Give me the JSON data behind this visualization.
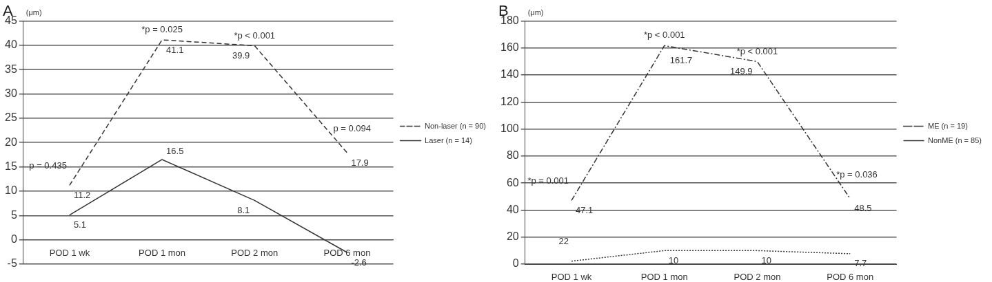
{
  "chart_data": [
    {
      "type": "line",
      "title": "A",
      "ylabel": "(μm)",
      "categories": [
        "POD 1 wk",
        "POD 1 mon",
        "POD 2 mon",
        "POD 6 mon"
      ],
      "series": [
        {
          "name": "Non-laser (n = 90)",
          "color": "#333333",
          "line_style": "dashed",
          "values": [
            11.2,
            41.1,
            39.9,
            17.9
          ]
        },
        {
          "name": "Laser (n = 14)",
          "color": "#333333",
          "line_style": "solid",
          "values": [
            5.1,
            16.5,
            8.1,
            -2.6
          ]
        }
      ],
      "ylim": [
        -5,
        45
      ],
      "yticks": [
        -5,
        0,
        5,
        10,
        15,
        20,
        25,
        30,
        35,
        40,
        45
      ],
      "grid": "y",
      "legend": "right",
      "marker": "none",
      "data_labels": true,
      "annotations": [
        {
          "text": "p = 0.435",
          "x": "POD 1 wk",
          "y": 11.2
        },
        {
          "text": "*p = 0.025",
          "x": "POD 1 mon",
          "y": 41.1
        },
        {
          "text": "*p < 0.001",
          "x": "POD 2 mon",
          "y": 39.9
        },
        {
          "text": "p = 0.094",
          "x": "POD 6 mon",
          "y": 17.9
        }
      ]
    },
    {
      "type": "line",
      "title": "B",
      "ylabel": "(μm)",
      "categories": [
        "POD 1 wk",
        "POD 1 mon",
        "POD 2 mon",
        "POD 6 mon"
      ],
      "series": [
        {
          "name": "ME (n = 19)",
          "color": "#333333",
          "line_style": "dashdot",
          "values": [
            47.1,
            161.7,
            149.9,
            48.5
          ],
          "value_labels": [
            "47.1",
            "161.7",
            "149.9",
            "48.5"
          ]
        },
        {
          "name": "NonME (n = 85)",
          "color": "#333333",
          "line_style": "dotted",
          "values": [
            2.2,
            10,
            10,
            7.7
          ],
          "value_labels": [
            null,
            "10",
            "10",
            "7.7"
          ]
        }
      ],
      "ylim": [
        0,
        180
      ],
      "yticks": [
        0,
        20,
        40,
        60,
        80,
        100,
        120,
        140,
        160,
        180
      ],
      "grid": "y",
      "legend": "right",
      "marker": "none",
      "annotations": [
        {
          "text": "*p = 0.001",
          "x": "POD 1 wk",
          "y": 47.1
        },
        {
          "text": "*p < 0.001",
          "x": "POD 1 mon",
          "y": 161.7
        },
        {
          "text": "*p < 0.001",
          "x": "POD 2 mon",
          "y": 149.9
        },
        {
          "text": "*p = 0.036",
          "x": "POD 6 mon",
          "y": 48.5
        },
        {
          "text": "22",
          "x": "POD 1 wk",
          "y": 2.2
        }
      ]
    }
  ]
}
